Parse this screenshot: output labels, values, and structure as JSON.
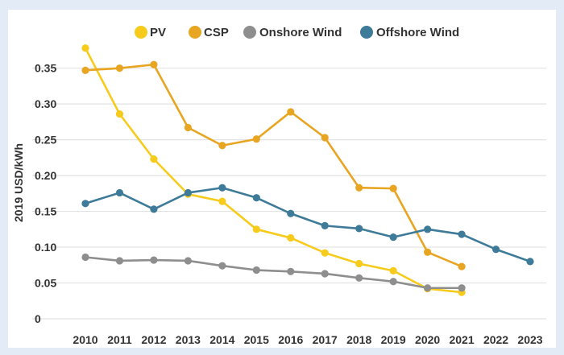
{
  "colors": {
    "page_background": "#e3ebf7",
    "panel_background": "#ffffff",
    "grid": "#e2e2e2",
    "text": "#333333"
  },
  "chart_data": {
    "type": "line",
    "title": "",
    "xlabel": "",
    "ylabel": "2019 USD/kWh",
    "x": [
      2010,
      2011,
      2012,
      2013,
      2014,
      2015,
      2016,
      2017,
      2018,
      2019,
      2020,
      2021,
      2022,
      2023
    ],
    "ylim": [
      0,
      0.38
    ],
    "yticks": [
      0,
      0.05,
      0.1,
      0.15,
      0.2,
      0.25,
      0.3,
      0.35
    ],
    "ytick_labels": [
      "0",
      "0.05",
      "0.10",
      "0.15",
      "0.20",
      "0.25",
      "0.30",
      "0.35"
    ],
    "xtick_labels": [
      "2010",
      "2011",
      "2012",
      "2013",
      "2014",
      "2015",
      "2016",
      "2017",
      "2018",
      "2019",
      "2020",
      "2021",
      "2022",
      "2023"
    ],
    "grid": true,
    "legend_position": "top",
    "series": [
      {
        "name": "PV",
        "color": "#f6cb1b",
        "values": [
          0.378,
          0.286,
          0.223,
          0.174,
          0.164,
          0.125,
          0.113,
          0.092,
          0.077,
          0.067,
          0.042,
          0.037,
          null,
          null
        ]
      },
      {
        "name": "CSP",
        "color": "#e8a522",
        "values": [
          0.347,
          0.35,
          0.355,
          0.267,
          0.242,
          0.251,
          0.289,
          0.253,
          0.183,
          0.182,
          0.093,
          0.073,
          null,
          null
        ]
      },
      {
        "name": "Onshore Wind",
        "color": "#8e8e8e",
        "values": [
          0.086,
          0.081,
          0.082,
          0.081,
          0.074,
          0.068,
          0.066,
          0.063,
          0.057,
          0.052,
          0.043,
          0.043,
          null,
          null
        ]
      },
      {
        "name": "Offshore Wind",
        "color": "#3e7b99",
        "values": [
          0.161,
          0.176,
          0.153,
          0.176,
          0.183,
          0.169,
          0.147,
          0.13,
          0.126,
          0.114,
          0.125,
          0.118,
          0.097,
          0.08
        ]
      }
    ]
  }
}
